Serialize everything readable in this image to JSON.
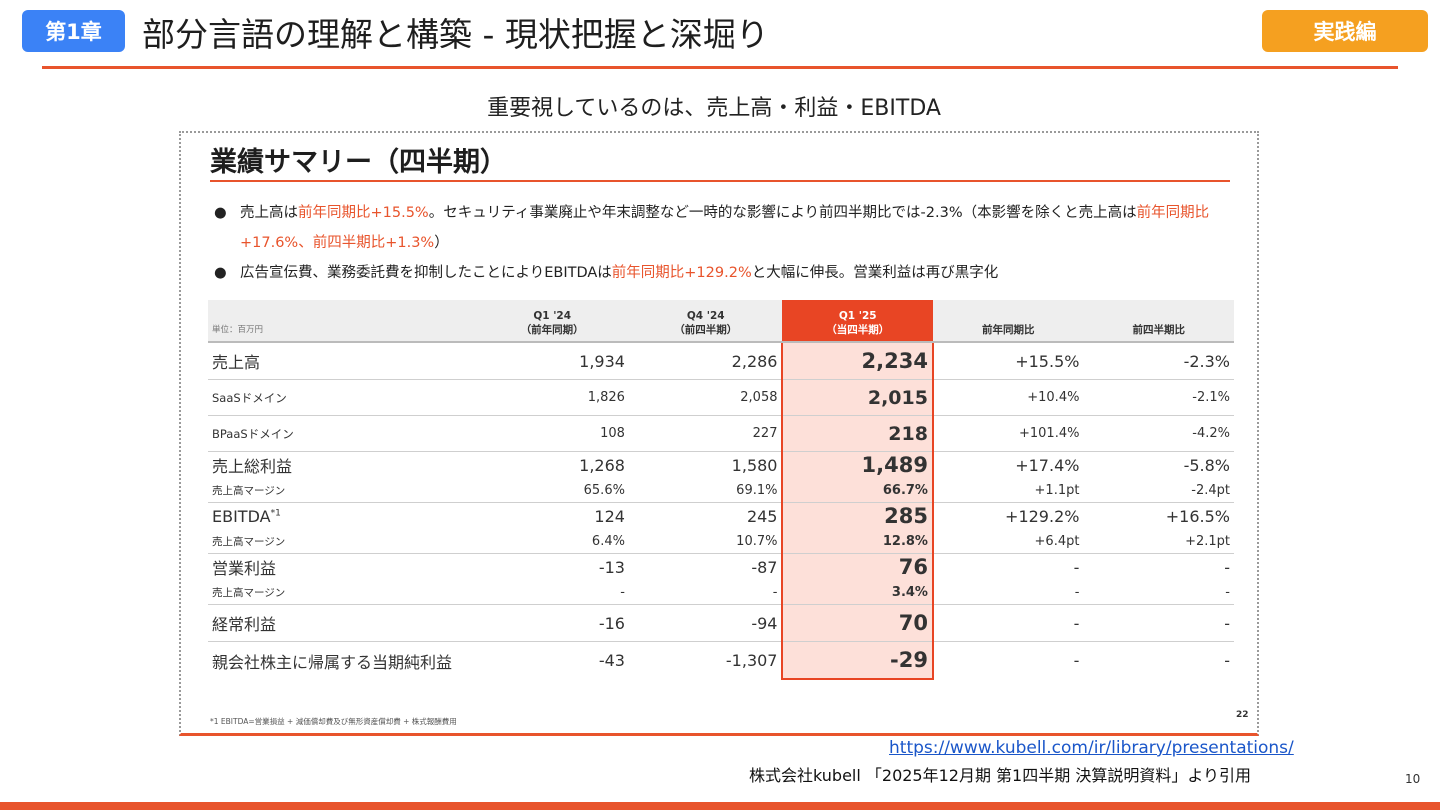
{
  "header": {
    "chapter": "第1章",
    "title": "部分言語の理解と構築 - 現状把握と深堀り",
    "tag": "実践編"
  },
  "subtitle": "重要視しているのは、売上高・利益・EBITDA",
  "screenshot": {
    "title": "業績サマリー（四半期）",
    "bullet1_a": "売上高は",
    "bullet1_b": "前年同期比+15.5%",
    "bullet1_c": "。セキュリティ事業廃止や年末調整など一時的な影響により前四半期比では-2.3%（本影響を除くと売上高は",
    "bullet1_d": "前年同期比+17.6%、前四半期比+1.3%",
    "bullet1_e": "）",
    "bullet2_a": "広告宣伝費、業務委託費を抑制したことによりEBITDAは",
    "bullet2_b": "前年同期比+129.2%",
    "bullet2_c": "と大幅に伸長。営業利益は再び黒字化",
    "table": {
      "unit": "単位：百万円",
      "h1a": "Q1 '24",
      "h1b": "（前年同期）",
      "h2a": "Q4 '24",
      "h2b": "（前四半期）",
      "h3a": "Q1 '25",
      "h3b": "（当四半期）",
      "h4": "前年同期比",
      "h5": "前四半期比",
      "rows": [
        {
          "label": "売上高",
          "v": [
            "1,934",
            "2,286",
            "2,234",
            "+15.5%",
            "-2.3%"
          ]
        },
        {
          "label": "SaaSドメイン",
          "v": [
            "1,826",
            "2,058",
            "2,015",
            "+10.4%",
            "-2.1%"
          ]
        },
        {
          "label": "BPaaSドメイン",
          "v": [
            "108",
            "227",
            "218",
            "+101.4%",
            "-4.2%"
          ]
        },
        {
          "label": "売上総利益",
          "v": [
            "1,268",
            "1,580",
            "1,489",
            "+17.4%",
            "-5.8%"
          ]
        },
        {
          "label": "売上高マージン",
          "v": [
            "65.6%",
            "69.1%",
            "66.7%",
            "+1.1pt",
            "-2.4pt"
          ]
        },
        {
          "label": "EBITDA",
          "sup": "*1",
          "v": [
            "124",
            "245",
            "285",
            "+129.2%",
            "+16.5%"
          ]
        },
        {
          "label": "売上高マージン",
          "v": [
            "6.4%",
            "10.7%",
            "12.8%",
            "+6.4pt",
            "+2.1pt"
          ]
        },
        {
          "label": "営業利益",
          "v": [
            "-13",
            "-87",
            "76",
            "-",
            "-"
          ]
        },
        {
          "label": "売上高マージン",
          "v": [
            "-",
            "-",
            "3.4%",
            "-",
            "-"
          ]
        },
        {
          "label": "経常利益",
          "v": [
            "-16",
            "-94",
            "70",
            "-",
            "-"
          ]
        },
        {
          "label": "親会社株主に帰属する当期純利益",
          "v": [
            "-43",
            "-1,307",
            "-29",
            "-",
            "-"
          ]
        }
      ]
    },
    "footnote": "*1 EBITDA=営業損益 + 減価償却費及び無形資産償却費 + 株式報酬費用",
    "inner_page": "22"
  },
  "source_link": "https://www.kubell.com/ir/library/presentations/",
  "source_caption": "株式会社kubell 「2025年12月期 第1四半期 決算説明資料」より引用",
  "page_number": "10"
}
